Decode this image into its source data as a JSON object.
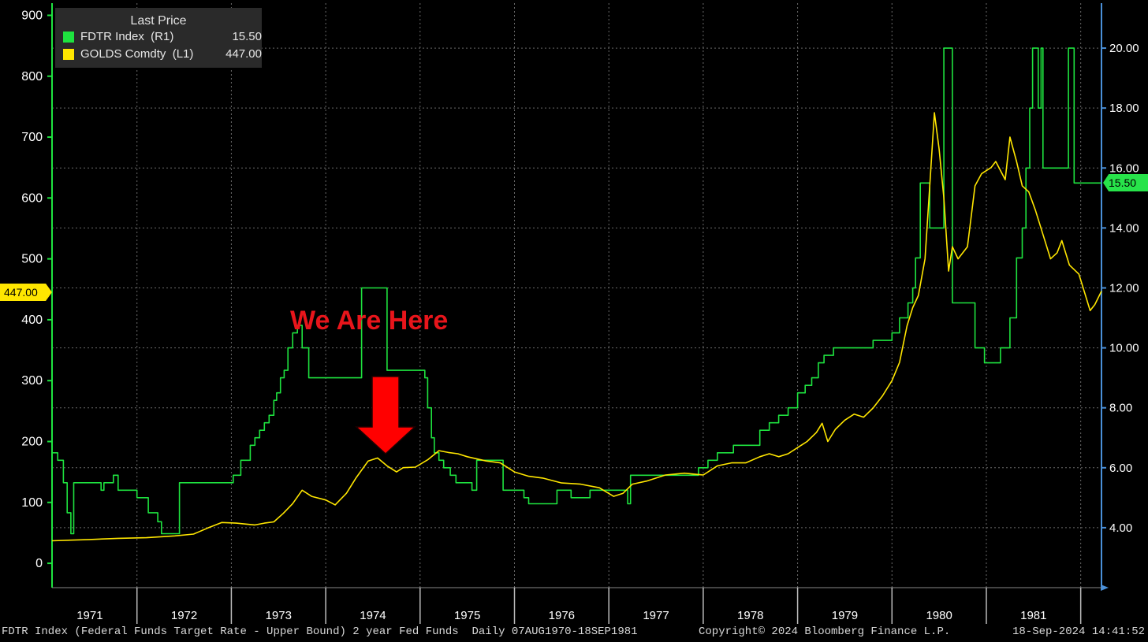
{
  "legend": {
    "title": "Last Price",
    "items": [
      {
        "name": "FDTR Index  (R1)",
        "value": "15.50",
        "color": "#1ee33f"
      },
      {
        "name": "GOLDS Comdty  (L1)",
        "value": "447.00",
        "color": "#ffe600"
      }
    ]
  },
  "annotation": {
    "text": "We Are Here",
    "color": "#e8151b",
    "arrow_color": "#ff0000"
  },
  "last_value_tags": {
    "left": "447.00",
    "right": "15.50"
  },
  "footer": {
    "description": "FDTR Index (Federal Funds Target Rate - Upper Bound) 2 year Fed Funds  Daily 07AUG1970-18SEP1981",
    "copyright": "Copyright© 2024 Bloomberg Finance L.P.",
    "timestamp": "18-Sep-2024 14:41:52"
  },
  "chart_data": {
    "type": "line",
    "title": "",
    "x_axis": {
      "tick_labels": [
        "1971",
        "1972",
        "1973",
        "1974",
        "1975",
        "1976",
        "1977",
        "1978",
        "1979",
        "1980",
        "1981"
      ],
      "range": [
        1970.6,
        1981.72
      ]
    },
    "y_axis_left": {
      "range": [
        -40,
        920
      ],
      "ticks": [
        0,
        100,
        200,
        300,
        400,
        500,
        600,
        700,
        800,
        900
      ],
      "tick_labels": [
        "0",
        "100",
        "200",
        "300",
        "400",
        "500",
        "600",
        "700",
        "800",
        "900"
      ],
      "color": "#1ee33f"
    },
    "y_axis_right": {
      "range": [
        2,
        21.5
      ],
      "ticks": [
        4,
        6,
        8,
        10,
        12,
        14,
        16,
        18,
        20
      ],
      "tick_labels": [
        "4.00",
        "6.00",
        "8.00",
        "10.00",
        "12.00",
        "14.00",
        "16.00",
        "18.00",
        "20.00"
      ],
      "color": "#4a90d9"
    },
    "grid": true,
    "legend_position": "top-left",
    "series": [
      {
        "name": "FDTR Index",
        "axis": "right",
        "color": "#1ee33f",
        "step": true,
        "points": [
          [
            1970.6,
            6.5
          ],
          [
            1970.66,
            6.25
          ],
          [
            1970.72,
            5.5
          ],
          [
            1970.76,
            4.5
          ],
          [
            1970.8,
            3.8
          ],
          [
            1970.83,
            5.5
          ],
          [
            1971.0,
            5.5
          ],
          [
            1971.11,
            5.5
          ],
          [
            1971.12,
            5.25
          ],
          [
            1971.15,
            5.5
          ],
          [
            1971.25,
            5.75
          ],
          [
            1971.3,
            5.25
          ],
          [
            1971.5,
            5.0
          ],
          [
            1971.62,
            4.5
          ],
          [
            1971.72,
            4.2
          ],
          [
            1971.76,
            3.8
          ],
          [
            1971.93,
            3.8
          ],
          [
            1971.95,
            5.5
          ],
          [
            1972.5,
            5.5
          ],
          [
            1972.52,
            5.75
          ],
          [
            1972.6,
            6.25
          ],
          [
            1972.7,
            6.75
          ],
          [
            1972.75,
            7.0
          ],
          [
            1972.8,
            7.25
          ],
          [
            1972.85,
            7.5
          ],
          [
            1972.9,
            7.75
          ],
          [
            1972.95,
            8.25
          ],
          [
            1972.98,
            8.5
          ],
          [
            1973.02,
            9.0
          ],
          [
            1973.06,
            9.25
          ],
          [
            1973.1,
            10.0
          ],
          [
            1973.15,
            10.5
          ],
          [
            1973.2,
            10.75
          ],
          [
            1973.25,
            10.0
          ],
          [
            1973.32,
            9.0
          ],
          [
            1973.45,
            9.0
          ],
          [
            1973.6,
            9.0
          ],
          [
            1973.7,
            9.0
          ],
          [
            1973.85,
            9.0
          ],
          [
            1973.88,
            12.0
          ],
          [
            1974.12,
            12.0
          ],
          [
            1974.15,
            9.25
          ],
          [
            1974.5,
            9.25
          ],
          [
            1974.55,
            9.0
          ],
          [
            1974.58,
            8.0
          ],
          [
            1974.62,
            7.0
          ],
          [
            1974.65,
            6.5
          ],
          [
            1974.7,
            6.25
          ],
          [
            1974.75,
            6.0
          ],
          [
            1974.82,
            5.75
          ],
          [
            1974.88,
            5.5
          ],
          [
            1974.95,
            5.5
          ],
          [
            1975.05,
            5.25
          ],
          [
            1975.1,
            6.25
          ],
          [
            1975.35,
            6.25
          ],
          [
            1975.38,
            5.25
          ],
          [
            1975.6,
            5.0
          ],
          [
            1975.65,
            4.8
          ],
          [
            1975.92,
            4.8
          ],
          [
            1975.95,
            5.25
          ],
          [
            1976.1,
            5.0
          ],
          [
            1976.2,
            5.0
          ],
          [
            1976.3,
            5.25
          ],
          [
            1976.55,
            5.25
          ],
          [
            1976.7,
            4.8
          ],
          [
            1976.73,
            5.75
          ],
          [
            1977.4,
            5.75
          ],
          [
            1977.45,
            6.0
          ],
          [
            1977.55,
            6.25
          ],
          [
            1977.65,
            6.5
          ],
          [
            1977.82,
            6.75
          ],
          [
            1977.95,
            6.75
          ],
          [
            1978.1,
            7.25
          ],
          [
            1978.2,
            7.5
          ],
          [
            1978.3,
            7.75
          ],
          [
            1978.4,
            8.0
          ],
          [
            1978.5,
            8.5
          ],
          [
            1978.58,
            8.75
          ],
          [
            1978.65,
            9.0
          ],
          [
            1978.72,
            9.5
          ],
          [
            1978.78,
            9.75
          ],
          [
            1978.88,
            10.0
          ],
          [
            1979.3,
            10.25
          ],
          [
            1979.5,
            10.5
          ],
          [
            1979.58,
            11.0
          ],
          [
            1979.67,
            11.5
          ],
          [
            1979.72,
            12.0
          ],
          [
            1979.75,
            13.0
          ],
          [
            1979.8,
            15.5
          ],
          [
            1979.9,
            14.0
          ],
          [
            1980.0,
            14.0
          ],
          [
            1980.05,
            20.0
          ],
          [
            1980.14,
            11.5
          ],
          [
            1980.32,
            11.5
          ],
          [
            1980.38,
            10.0
          ],
          [
            1980.48,
            9.5
          ],
          [
            1980.6,
            9.5
          ],
          [
            1980.65,
            10.0
          ],
          [
            1980.75,
            11.0
          ],
          [
            1980.82,
            13.0
          ],
          [
            1980.88,
            14.0
          ],
          [
            1980.92,
            16.0
          ],
          [
            1980.96,
            18.0
          ],
          [
            1980.99,
            20.0
          ],
          [
            1981.05,
            18.0
          ],
          [
            1981.08,
            20.0
          ],
          [
            1981.1,
            16.0
          ],
          [
            1981.37,
            20.0
          ],
          [
            1981.43,
            15.5
          ],
          [
            1981.72,
            15.5
          ]
        ]
      },
      {
        "name": "GOLDS Comdty",
        "axis": "left",
        "color": "#ffe600",
        "step": false,
        "points": [
          [
            1970.6,
            37
          ],
          [
            1970.8,
            38
          ],
          [
            1971.0,
            39
          ],
          [
            1971.3,
            41
          ],
          [
            1971.6,
            42
          ],
          [
            1971.9,
            45
          ],
          [
            1972.1,
            48
          ],
          [
            1972.25,
            58
          ],
          [
            1972.4,
            67
          ],
          [
            1972.55,
            66
          ],
          [
            1972.75,
            63
          ],
          [
            1972.85,
            66
          ],
          [
            1972.95,
            68
          ],
          [
            1973.05,
            82
          ],
          [
            1973.15,
            98
          ],
          [
            1973.25,
            120
          ],
          [
            1973.35,
            110
          ],
          [
            1973.5,
            104
          ],
          [
            1973.6,
            96
          ],
          [
            1973.72,
            115
          ],
          [
            1973.82,
            140
          ],
          [
            1973.95,
            168
          ],
          [
            1974.05,
            173
          ],
          [
            1974.15,
            160
          ],
          [
            1974.25,
            150
          ],
          [
            1974.32,
            157
          ],
          [
            1974.45,
            158
          ],
          [
            1974.58,
            170
          ],
          [
            1974.7,
            185
          ],
          [
            1974.8,
            182
          ],
          [
            1974.9,
            180
          ],
          [
            1975.0,
            175
          ],
          [
            1975.2,
            168
          ],
          [
            1975.35,
            165
          ],
          [
            1975.5,
            150
          ],
          [
            1975.65,
            143
          ],
          [
            1975.8,
            140
          ],
          [
            1976.0,
            132
          ],
          [
            1976.2,
            130
          ],
          [
            1976.4,
            124
          ],
          [
            1976.55,
            110
          ],
          [
            1976.65,
            115
          ],
          [
            1976.75,
            130
          ],
          [
            1976.9,
            135
          ],
          [
            1977.1,
            145
          ],
          [
            1977.3,
            148
          ],
          [
            1977.5,
            145
          ],
          [
            1977.65,
            160
          ],
          [
            1977.8,
            165
          ],
          [
            1977.95,
            165
          ],
          [
            1978.1,
            175
          ],
          [
            1978.2,
            180
          ],
          [
            1978.3,
            175
          ],
          [
            1978.4,
            180
          ],
          [
            1978.5,
            190
          ],
          [
            1978.6,
            200
          ],
          [
            1978.7,
            215
          ],
          [
            1978.76,
            230
          ],
          [
            1978.82,
            200
          ],
          [
            1978.9,
            220
          ],
          [
            1979.0,
            235
          ],
          [
            1979.1,
            245
          ],
          [
            1979.2,
            240
          ],
          [
            1979.3,
            255
          ],
          [
            1979.4,
            275
          ],
          [
            1979.5,
            300
          ],
          [
            1979.58,
            330
          ],
          [
            1979.66,
            390
          ],
          [
            1979.72,
            420
          ],
          [
            1979.78,
            440
          ],
          [
            1979.85,
            500
          ],
          [
            1979.9,
            620
          ],
          [
            1979.95,
            740
          ],
          [
            1980.0,
            680
          ],
          [
            1980.05,
            600
          ],
          [
            1980.1,
            480
          ],
          [
            1980.14,
            520
          ],
          [
            1980.2,
            500
          ],
          [
            1980.3,
            520
          ],
          [
            1980.38,
            620
          ],
          [
            1980.45,
            640
          ],
          [
            1980.55,
            650
          ],
          [
            1980.6,
            660
          ],
          [
            1980.7,
            630
          ],
          [
            1980.75,
            700
          ],
          [
            1980.82,
            660
          ],
          [
            1980.88,
            620
          ],
          [
            1980.95,
            610
          ],
          [
            1981.02,
            580
          ],
          [
            1981.1,
            540
          ],
          [
            1981.18,
            500
          ],
          [
            1981.25,
            510
          ],
          [
            1981.3,
            530
          ],
          [
            1981.38,
            490
          ],
          [
            1981.48,
            475
          ],
          [
            1981.55,
            440
          ],
          [
            1981.6,
            415
          ],
          [
            1981.65,
            425
          ],
          [
            1981.72,
            447
          ]
        ]
      }
    ]
  }
}
